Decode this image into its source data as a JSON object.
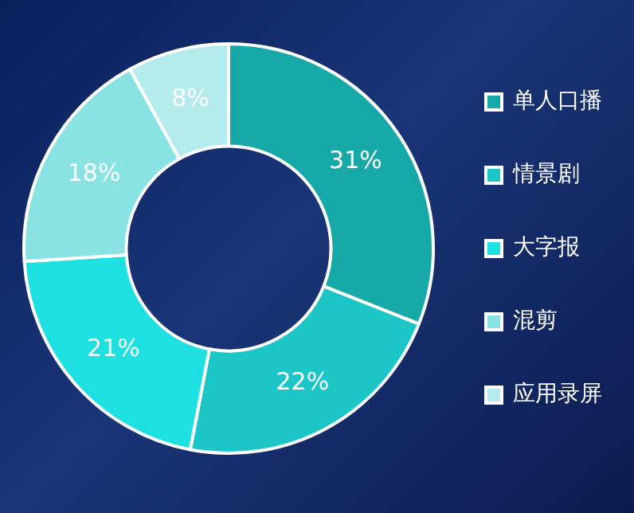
{
  "chart_data": {
    "type": "donut",
    "categories": [
      "单人口播",
      "情景剧",
      "大字报",
      "混剪",
      "应用录屏"
    ],
    "values": [
      31,
      22,
      21,
      18,
      8
    ],
    "colors": [
      "#17a9a8",
      "#1dc6c6",
      "#1ee0e0",
      "#8ae3e3",
      "#b4ecee"
    ],
    "value_labels": [
      "31%",
      "22%",
      "21%",
      "18%",
      "8%"
    ],
    "legend": "right"
  }
}
